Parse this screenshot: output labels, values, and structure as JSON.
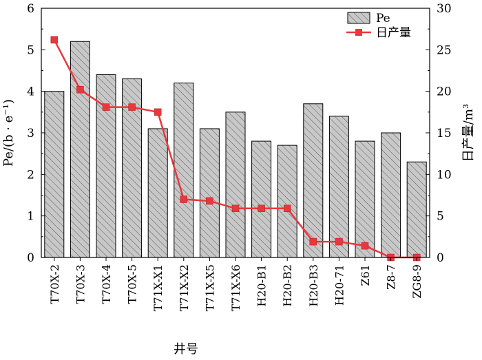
{
  "chart_data": {
    "type": "bar",
    "categories": [
      "T70X-2",
      "T70X-3",
      "T70X-4",
      "T70X-5",
      "T71X-X1",
      "T71X-X2",
      "T71X-X5",
      "T71X-X6",
      "H20-B1",
      "H20-B2",
      "H20-B3",
      "H20-71",
      "Z61",
      "Z8-7",
      "ZG8-9"
    ],
    "series": [
      {
        "name": "Pe",
        "kind": "bar",
        "axis": "left",
        "color": "#c8c8c8",
        "pattern": "hatch",
        "values": [
          4.0,
          5.2,
          4.4,
          4.3,
          3.1,
          4.2,
          3.1,
          3.5,
          2.8,
          2.7,
          3.7,
          3.4,
          2.8,
          3.0,
          2.3
        ]
      },
      {
        "name": "日产量",
        "kind": "line",
        "axis": "right",
        "color": "#e8383d",
        "marker": "square",
        "values": [
          26.2,
          20.2,
          18.1,
          18.1,
          17.5,
          7.0,
          6.8,
          5.9,
          5.9,
          5.9,
          1.9,
          1.9,
          1.4,
          0.0,
          0.0
        ]
      }
    ],
    "xlabel": "井号",
    "ylabel_left": "Pe/(b · e⁻¹)",
    "ylabel_right": "日产量/m³",
    "ylim_left": [
      0,
      6
    ],
    "ylim_right": [
      0,
      30
    ],
    "yticks_left": [
      "0",
      "1",
      "2",
      "3",
      "4",
      "5",
      "6"
    ],
    "yticks_right": [
      "0",
      "5",
      "10",
      "15",
      "20",
      "25",
      "30"
    ],
    "legend_position": "top-right",
    "grid": false
  }
}
